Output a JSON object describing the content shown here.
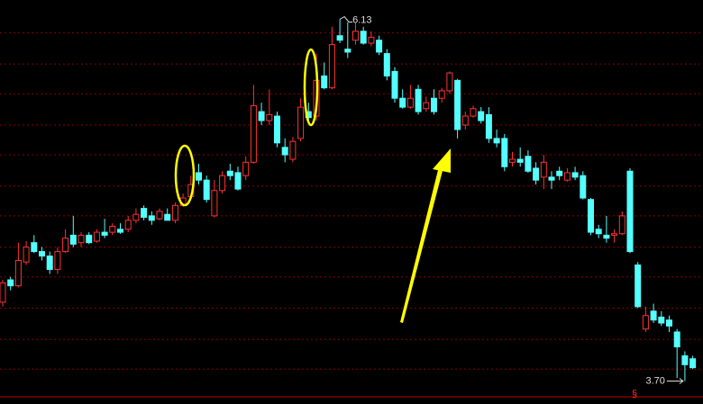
{
  "chart_data": {
    "type": "candlestick",
    "open": [
      4.23,
      4.38,
      4.34,
      4.5,
      4.63,
      4.57,
      4.54,
      4.45,
      4.57,
      4.68,
      4.63,
      4.68,
      4.64,
      4.7,
      4.7,
      4.72,
      4.72,
      4.78,
      4.86,
      4.81,
      4.79,
      4.82,
      4.78,
      4.88,
      4.94,
      5.1,
      5.05,
      4.81,
      4.98,
      5.11,
      5.1,
      5.08,
      5.17,
      5.51,
      5.45,
      5.48,
      5.27,
      5.19,
      5.33,
      5.51,
      5.48,
      5.75,
      5.67,
      6.02,
      5.93,
      5.99,
      6.05,
      5.97,
      5.99,
      5.9,
      5.78,
      5.6,
      5.54,
      5.66,
      5.53,
      5.6,
      5.6,
      5.65,
      5.72,
      5.42,
      5.48,
      5.51,
      5.49,
      5.33,
      5.33,
      5.17,
      5.19,
      5.21,
      5.13,
      5.07,
      5.07,
      5.11,
      5.05,
      5.1,
      5.08,
      4.92,
      4.72,
      4.68,
      4.68,
      4.69,
      5.11,
      4.48,
      4.05,
      4.17,
      4.13,
      4.11,
      4.03,
      3.87,
      3.85
    ],
    "close": [
      4.36,
      4.34,
      4.51,
      4.6,
      4.57,
      4.54,
      4.45,
      4.57,
      4.66,
      4.62,
      4.68,
      4.63,
      4.7,
      4.68,
      4.74,
      4.7,
      4.78,
      4.82,
      4.8,
      4.78,
      4.84,
      4.78,
      4.88,
      4.93,
      5.02,
      5.05,
      4.92,
      4.98,
      5.08,
      5.08,
      4.99,
      5.17,
      5.55,
      5.45,
      5.49,
      5.3,
      5.22,
      5.31,
      5.54,
      5.47,
      5.72,
      5.67,
      5.96,
      5.99,
      5.91,
      6.05,
      5.97,
      6.01,
      5.91,
      5.75,
      5.6,
      5.54,
      5.6,
      5.51,
      5.57,
      5.51,
      5.65,
      5.77,
      5.39,
      5.48,
      5.53,
      5.45,
      5.33,
      5.3,
      5.14,
      5.19,
      5.17,
      5.11,
      5.05,
      5.17,
      5.05,
      5.08,
      5.1,
      5.07,
      4.93,
      4.7,
      4.69,
      4.66,
      4.69,
      4.81,
      4.57,
      4.2,
      4.14,
      4.11,
      4.09,
      4.07,
      3.93,
      3.81,
      3.79
    ],
    "high": [
      4.38,
      4.4,
      4.63,
      4.64,
      4.68,
      4.6,
      4.57,
      4.6,
      4.72,
      4.81,
      4.7,
      4.7,
      4.72,
      4.79,
      4.76,
      4.76,
      4.81,
      4.86,
      4.88,
      4.84,
      4.86,
      4.86,
      4.9,
      4.96,
      5.08,
      5.16,
      5.08,
      5.05,
      5.11,
      5.16,
      5.14,
      5.21,
      5.69,
      5.57,
      5.66,
      5.51,
      5.33,
      5.34,
      5.6,
      5.57,
      5.9,
      5.84,
      6.08,
      6.13,
      6.11,
      6.11,
      6.08,
      6.05,
      6.02,
      5.93,
      5.81,
      5.66,
      5.69,
      5.69,
      5.61,
      5.66,
      5.67,
      5.78,
      5.73,
      5.51,
      5.55,
      5.54,
      5.54,
      5.39,
      5.36,
      5.24,
      5.27,
      5.25,
      5.17,
      5.22,
      5.11,
      5.14,
      5.13,
      5.14,
      5.11,
      4.93,
      4.75,
      4.81,
      4.72,
      4.84,
      5.13,
      4.5,
      4.2,
      4.22,
      4.17,
      4.14,
      4.05,
      3.9,
      3.87
    ],
    "low": [
      4.2,
      4.31,
      4.33,
      4.48,
      4.56,
      4.51,
      4.42,
      4.42,
      4.56,
      4.6,
      4.6,
      4.62,
      4.63,
      4.66,
      4.68,
      4.69,
      4.7,
      4.76,
      4.78,
      4.75,
      4.78,
      4.78,
      4.76,
      4.87,
      4.93,
      5.02,
      4.9,
      4.8,
      4.96,
      5.05,
      4.98,
      5.05,
      5.16,
      5.42,
      5.42,
      5.27,
      5.17,
      5.17,
      5.31,
      5.45,
      5.45,
      5.66,
      5.66,
      5.97,
      5.87,
      5.96,
      5.96,
      5.95,
      5.89,
      5.72,
      5.57,
      5.53,
      5.53,
      5.49,
      5.51,
      5.49,
      5.57,
      5.63,
      5.33,
      5.39,
      5.47,
      5.43,
      5.3,
      5.27,
      5.11,
      5.14,
      5.14,
      5.1,
      5.02,
      4.99,
      4.99,
      5.05,
      5.04,
      5.05,
      4.92,
      4.68,
      4.66,
      4.63,
      4.63,
      4.68,
      4.56,
      4.19,
      4.03,
      4.09,
      4.07,
      4.03,
      3.72,
      3.7,
      3.78
    ],
    "up_color": "#ff3232",
    "down_color": "#54ffff",
    "ylim": [
      3.54,
      6.26
    ],
    "yticks": [
      6.04,
      5.83,
      5.63,
      5.42,
      5.22,
      5.01,
      4.81,
      4.6,
      4.4,
      4.19,
      3.98,
      3.78
    ],
    "grid": true,
    "annotations": [
      {
        "value": 6.13,
        "label": "6.13"
      },
      {
        "value": 3.7,
        "label": "3.70"
      }
    ],
    "marker": "§"
  }
}
